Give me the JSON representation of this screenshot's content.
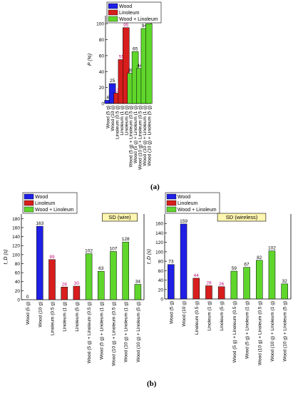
{
  "panel_labels": [
    "(a)",
    "(b)"
  ],
  "colors": {
    "wood": "#1f1fe6",
    "linoleum": "#d81d1d",
    "mixed": "#5fd62b"
  },
  "chart_data": [
    {
      "type": "bar",
      "id": "a",
      "title": "",
      "ylabel": "P (%)",
      "ylim": [
        0,
        110
      ],
      "yticks": [
        0,
        20,
        40,
        60,
        80,
        100
      ],
      "tag": "",
      "legend": [
        "Wood",
        "Linoleum",
        "Wood + Linoleum"
      ],
      "legend_position": "top-left",
      "categories": [
        "Wood (5 g)",
        "Wood (10 g)",
        "Linoleum (0.5 g)",
        "Linoleum (1 g)",
        "Linoleum (5 g)",
        "Wood (5 g) + Linoleum (0.5 g)",
        "Wood (5 g) + Linoleum (1 g)",
        "Wood (10 g) + Linoleum (0.5 g)",
        "Wood (10 g) + Linoleum (1 g)",
        "Wood (10 g) + Linoleum (5 g)"
      ],
      "groups": [
        "wood",
        "wood",
        "linoleum",
        "linoleum",
        "linoleum",
        "mixed",
        "mixed",
        "mixed",
        "mixed",
        "mixed"
      ],
      "values": [
        4,
        25,
        13,
        55,
        95,
        38,
        65,
        44,
        94,
        100
      ]
    },
    {
      "type": "bar",
      "id": "b1",
      "title": "",
      "ylabel": "t_D (s)",
      "ylim": [
        0,
        190
      ],
      "yticks": [
        0,
        20,
        40,
        60,
        80,
        100,
        120,
        140,
        160,
        180
      ],
      "tag": "SD (wire)",
      "legend": [
        "Wood",
        "Linoleum",
        "Wood + Linoleum"
      ],
      "legend_position": "top-left",
      "categories": [
        "Wood (5 g)",
        "Wood (10 g)",
        "Linoleum (0.5 g)",
        "Linoleum (1 g)",
        "Linoleum (5 g)",
        "Wood (5 g) + Linoleum (0.5 g)",
        "Wood (5 g) + Linoleum (1 g)",
        "Wood (10 g) + Linoleum (0.5 g)",
        "Wood (10 g) + Linoleum (1 g)",
        "Wood (10 g) + Linoleum (5 g)"
      ],
      "groups": [
        "wood",
        "wood",
        "linoleum",
        "linoleum",
        "linoleum",
        "mixed",
        "mixed",
        "mixed",
        "mixed",
        "mixed"
      ],
      "values": [
        0,
        163,
        89,
        28,
        30,
        102,
        63,
        107,
        128,
        34
      ]
    },
    {
      "type": "bar",
      "id": "b2",
      "title": "",
      "ylabel": "t_D (s)",
      "ylim": [
        0,
        180
      ],
      "yticks": [
        0,
        20,
        40,
        60,
        80,
        100,
        120,
        140,
        160
      ],
      "tag": "SD (wireless)",
      "legend": [
        "Wood",
        "Linoleum",
        "Wood + Linoleum"
      ],
      "legend_position": "top-left",
      "categories": [
        "Wood (5 g)",
        "Wood (10 g)",
        "Linoleum (0.5 g)",
        "Linoleum (1 g)",
        "Linoleum (5 g)",
        "Wood (5 g) + Linoleum (0.5 g)",
        "Wood (5 g) + Linoleum (1 g)",
        "Wood (10 g) + Linoleum (0.5 g)",
        "Wood (10 g) + Linoleum (1 g)",
        "Wood (10 g) + Linoleum (5 g)"
      ],
      "groups": [
        "wood",
        "wood",
        "linoleum",
        "linoleum",
        "linoleum",
        "mixed",
        "mixed",
        "mixed",
        "mixed",
        "mixed"
      ],
      "values": [
        73,
        159,
        44,
        28,
        26,
        59,
        67,
        82,
        102,
        32
      ]
    }
  ]
}
